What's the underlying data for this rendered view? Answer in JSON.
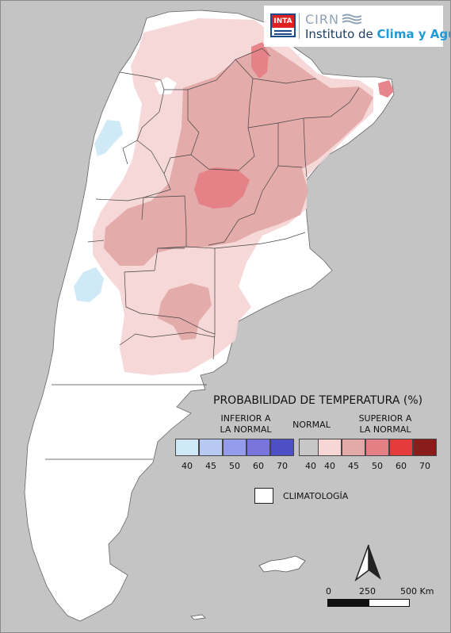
{
  "logo": {
    "inta": "INTA",
    "cirn": "CIRN",
    "institute_prefix": "Instituto de ",
    "institute_accent": "Clima y Agua"
  },
  "legend": {
    "title": "PROBABILIDAD DE TEMPERATURA (%)",
    "below_label_line1": "INFERIOR A",
    "below_label_line2": "LA NORMAL",
    "normal_label": "NORMAL",
    "above_label_line1": "SUPERIOR A",
    "above_label_line2": "LA NORMAL",
    "below_colors": [
      "#cfe9f7",
      "#b7c8f2",
      "#949bea",
      "#7774dc",
      "#4f4fc4"
    ],
    "below_values": [
      "40",
      "45",
      "50",
      "60",
      "70"
    ],
    "normal_color": "#c7c7c7",
    "normal_value": "40",
    "above_colors": [
      "#f7d6d6",
      "#e3a9a9",
      "#e57f86",
      "#e63b3b",
      "#8a1c1c"
    ],
    "above_values": [
      "40",
      "45",
      "50",
      "60",
      "70"
    ],
    "climatology_label": "CLIMATOLOGÍA"
  },
  "scale": {
    "label_0": "0",
    "label_mid": "250",
    "label_end": "500 Km"
  },
  "colors": {
    "land": "#ffffff",
    "background": "#c4c4c4",
    "above_40": "#f7d6d6",
    "above_45": "#e3a9a9",
    "above_50": "#e57f86",
    "below_40": "#cfe9f7"
  }
}
